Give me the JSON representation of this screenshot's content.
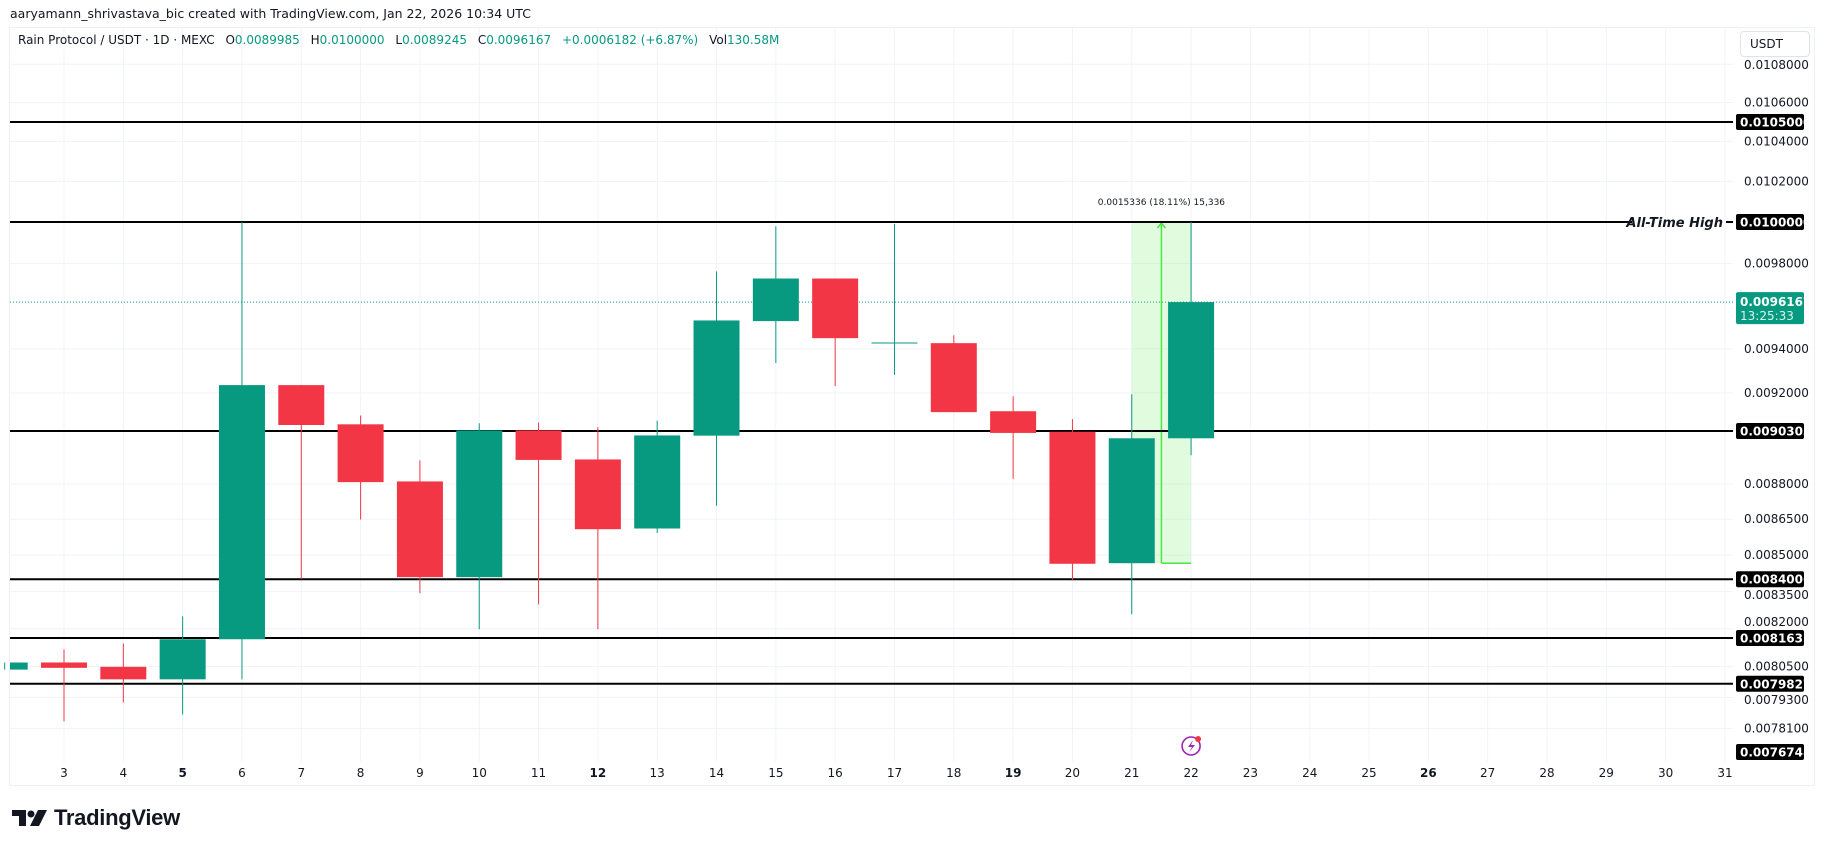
{
  "credit": "aaryamann_shrivastava_bic created with TradingView.com, Jan 22, 2026 10:34 UTC",
  "legend": {
    "symbol": "Rain Protocol / USDT · 1D · MEXC",
    "o_label": "O",
    "o": "0.0089985",
    "h_label": "H",
    "h": "0.0100000",
    "l_label": "L",
    "l": "0.0089245",
    "c_label": "C",
    "c": "0.0096167",
    "change": "+0.0006182 (+6.87%)",
    "vol_label": "Vol",
    "vol": "130.58M"
  },
  "price_axis": {
    "unit": "USDT"
  },
  "logo": {
    "text": "TradingView"
  },
  "colors": {
    "up": "#089981",
    "down": "#F23645",
    "measure": "#4CE642",
    "grid": "#F0F3FA",
    "line": "#000000"
  },
  "chart_data": {
    "type": "candlestick",
    "scale": "log",
    "grid": true,
    "x_ticks": [
      "3",
      "4",
      "5",
      "6",
      "7",
      "8",
      "9",
      "10",
      "11",
      "12",
      "13",
      "14",
      "15",
      "16",
      "17",
      "18",
      "19",
      "20",
      "21",
      "22",
      "23",
      "24",
      "25",
      "26",
      "27",
      "28",
      "29",
      "30",
      "31"
    ],
    "x_ticks_bold": [
      "5",
      "12",
      "19",
      "26"
    ],
    "y_ticks": [
      "0.0108000",
      "0.0106000",
      "0.0104000",
      "0.0102000",
      "0.0098000",
      "0.0094000",
      "0.0092000",
      "0.0088000",
      "0.0086500",
      "0.0085000",
      "0.0083500",
      "0.0082000",
      "0.0080500",
      "0.0079300",
      "0.0078100"
    ],
    "candles": [
      {
        "day": 2,
        "o": 0.008038,
        "h": 0.008066,
        "l": 0.008038,
        "c": 0.008066
      },
      {
        "day": 3,
        "o": 0.008066,
        "h": 0.008118,
        "l": 0.007838,
        "c": 0.008045
      },
      {
        "day": 4,
        "o": 0.008049,
        "h": 0.008141,
        "l": 0.00791,
        "c": 0.008
      },
      {
        "day": 5,
        "o": 0.008,
        "h": 0.00825,
        "l": 0.007864,
        "c": 0.008158
      },
      {
        "day": 6,
        "o": 0.008158,
        "h": 0.01,
        "l": 0.008,
        "c": 0.009235
      },
      {
        "day": 7,
        "o": 0.009235,
        "h": 0.009235,
        "l": 0.008401,
        "c": 0.009057
      },
      {
        "day": 8,
        "o": 0.00906,
        "h": 0.009099,
        "l": 0.008649,
        "c": 0.008808
      },
      {
        "day": 9,
        "o": 0.008811,
        "h": 0.008902,
        "l": 0.008343,
        "c": 0.008409
      },
      {
        "day": 10,
        "o": 0.008409,
        "h": 0.009065,
        "l": 0.008198,
        "c": 0.009033
      },
      {
        "day": 11,
        "o": 0.009033,
        "h": 0.009068,
        "l": 0.008298,
        "c": 0.008904
      },
      {
        "day": 12,
        "o": 0.008906,
        "h": 0.009047,
        "l": 0.008198,
        "c": 0.008608
      },
      {
        "day": 13,
        "o": 0.008611,
        "h": 0.009076,
        "l": 0.008592,
        "c": 0.009011
      },
      {
        "day": 14,
        "o": 0.00901,
        "h": 0.009762,
        "l": 0.008707,
        "c": 0.009531
      },
      {
        "day": 15,
        "o": 0.009528,
        "h": 0.009979,
        "l": 0.009335,
        "c": 0.009728
      },
      {
        "day": 16,
        "o": 0.009728,
        "h": 0.009728,
        "l": 0.009231,
        "c": 0.009449
      },
      {
        "day": 17,
        "o": 0.009429,
        "h": 0.00999,
        "l": 0.009281,
        "c": 0.009429
      },
      {
        "day": 18,
        "o": 0.009426,
        "h": 0.009462,
        "l": 0.009114,
        "c": 0.009114
      },
      {
        "day": 19,
        "o": 0.009118,
        "h": 0.009185,
        "l": 0.008822,
        "c": 0.009022
      },
      {
        "day": 20,
        "o": 0.009027,
        "h": 0.009083,
        "l": 0.008396,
        "c": 0.008464
      },
      {
        "day": 21,
        "o": 0.0084664,
        "h": 0.009194,
        "l": 0.008258,
        "c": 0.0089985
      },
      {
        "day": 22,
        "o": 0.0089985,
        "h": 0.01,
        "l": 0.0089245,
        "c": 0.0096167
      }
    ],
    "horizontal_lines": [
      {
        "price": 0.0105,
        "label": "0.0105000"
      },
      {
        "price": 0.01,
        "label": "0.0100000",
        "text": "All-Time High"
      },
      {
        "price": 0.0090303,
        "label": "0.0090303"
      },
      {
        "price": 0.0084006,
        "label": "0.0084006"
      },
      {
        "price": 0.0081632,
        "label": "0.0081632"
      },
      {
        "price": 0.0079827,
        "label": "0.0079827"
      }
    ],
    "extra_price_label": "0.0076748",
    "last_price": {
      "price": 0.0096167,
      "label": "0.0096167",
      "countdown": "13:25:33"
    },
    "measure": {
      "from_day": 21,
      "to_day": 22,
      "from_price": 0.0084664,
      "to_price": 0.01,
      "label": "0.0015336 (18.11%) 15,336"
    }
  }
}
